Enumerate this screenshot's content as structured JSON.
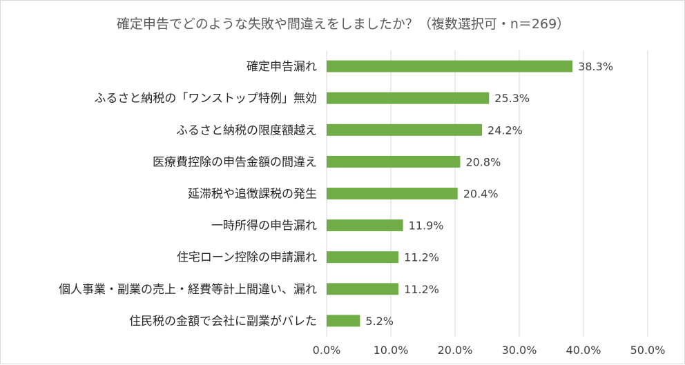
{
  "chart_data": {
    "type": "bar",
    "orientation": "horizontal",
    "title": "確定申告でどのような失敗や間違えをしましたか？（複数選択可・n＝269）",
    "categories": [
      "確定申告漏れ",
      "ふるさと納税の「ワンストップ特例」無効",
      "ふるさと納税の限度額越え",
      "医療費控除の申告金額の間違え",
      "延滞税や追徴課税の発生",
      "一時所得の申告漏れ",
      "住宅ローン控除の申請漏れ",
      "個人事業・副業の売上・経費等計上間違い、漏れ",
      "住民税の金額で会社に副業がバレた"
    ],
    "values": [
      38.3,
      25.3,
      24.2,
      20.8,
      20.4,
      11.9,
      11.2,
      11.2,
      5.2
    ],
    "value_labels": [
      "38.3%",
      "25.3%",
      "24.2%",
      "20.8%",
      "20.4%",
      "11.9%",
      "11.2%",
      "11.2%",
      "5.2%"
    ],
    "xlim": [
      0,
      50
    ],
    "xticks": [
      0,
      10,
      20,
      30,
      40,
      50
    ],
    "xtick_labels": [
      "0.0%",
      "10.0%",
      "20.0%",
      "30.0%",
      "40.0%",
      "50.0%"
    ],
    "grid": true,
    "legend": "none",
    "bar_color": "#70ad47"
  }
}
